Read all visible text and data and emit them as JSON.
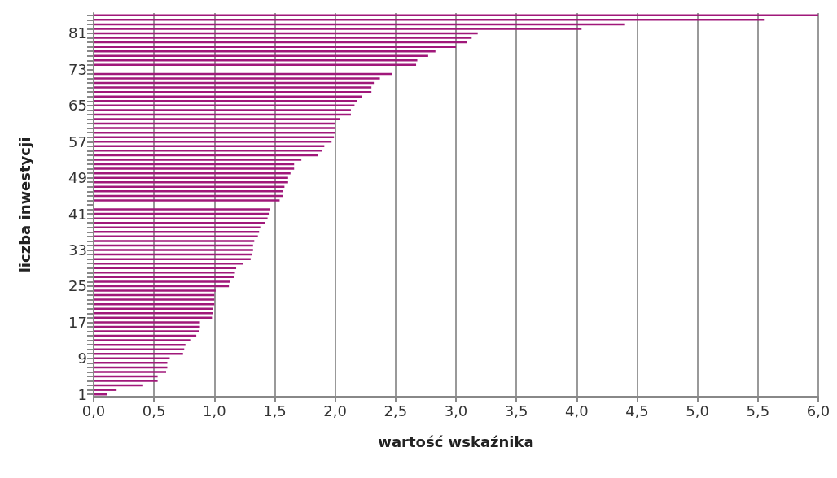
{
  "chart_data": {
    "type": "bar",
    "orientation": "horizontal",
    "xlabel": "wartość wskaźnika",
    "ylabel": "liczba inwestycji",
    "categories": [
      null,
      null,
      null,
      null,
      "81",
      null,
      null,
      null,
      null,
      null,
      null,
      null,
      "73",
      null,
      null,
      null,
      null,
      null,
      null,
      null,
      "65",
      null,
      null,
      null,
      null,
      null,
      null,
      null,
      "57",
      null,
      null,
      null,
      null,
      null,
      null,
      null,
      "49",
      null,
      null,
      null,
      null,
      null,
      null,
      null,
      "41",
      null,
      null,
      null,
      null,
      null,
      null,
      null,
      "33",
      null,
      null,
      null,
      null,
      null,
      null,
      null,
      "25",
      null,
      null,
      null,
      null,
      null,
      null,
      null,
      "17",
      null,
      null,
      null,
      null,
      null,
      null,
      null,
      "9",
      null,
      null,
      null,
      null,
      null,
      null,
      null,
      "1"
    ],
    "values": [
      6.0,
      5.55,
      4.4,
      4.04,
      3.18,
      3.13,
      3.09,
      3.0,
      2.83,
      2.77,
      2.68,
      2.67,
      null,
      2.47,
      2.37,
      2.32,
      2.3,
      2.3,
      2.22,
      2.18,
      2.16,
      2.13,
      2.13,
      2.04,
      2.0,
      2.0,
      2.0,
      1.99,
      1.97,
      1.91,
      1.89,
      1.86,
      1.72,
      1.66,
      1.66,
      1.63,
      1.61,
      1.61,
      1.58,
      1.57,
      1.57,
      1.54,
      null,
      1.46,
      1.45,
      1.44,
      1.42,
      1.38,
      1.37,
      1.36,
      1.33,
      1.32,
      1.32,
      1.31,
      1.3,
      1.24,
      1.18,
      1.17,
      1.16,
      1.13,
      1.12,
      1.01,
      1.0,
      1.0,
      1.0,
      0.99,
      0.99,
      0.98,
      0.88,
      0.88,
      0.87,
      0.85,
      0.8,
      0.76,
      0.75,
      0.74,
      0.63,
      0.61,
      0.61,
      0.6,
      0.53,
      0.53,
      0.41,
      0.19,
      0.11
    ],
    "color": "#a0187a",
    "xlim": [
      0,
      6
    ],
    "xticks": [
      {
        "value": 0,
        "label": "0,0"
      },
      {
        "value": 0.5,
        "label": "0,5"
      },
      {
        "value": 1,
        "label": "1,0"
      },
      {
        "value": 1.5,
        "label": "1,5"
      },
      {
        "value": 2,
        "label": "2,0"
      },
      {
        "value": 2.5,
        "label": "2,5"
      },
      {
        "value": 3,
        "label": "3,0"
      },
      {
        "value": 3.5,
        "label": "3,5"
      },
      {
        "value": 4,
        "label": "4,0"
      },
      {
        "value": 4.5,
        "label": "4,5"
      },
      {
        "value": 5,
        "label": "5,0"
      },
      {
        "value": 5.5,
        "label": "5,5"
      },
      {
        "value": 6,
        "label": "6,0"
      }
    ],
    "grid": "x"
  }
}
